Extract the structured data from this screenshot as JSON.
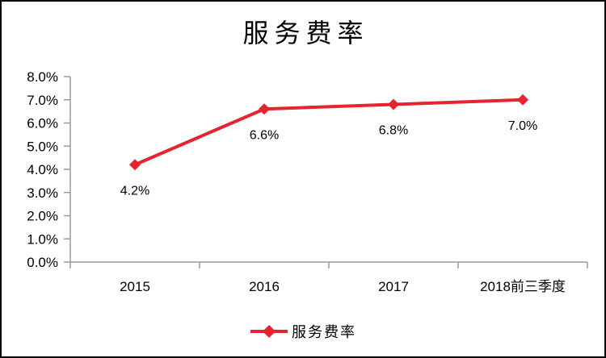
{
  "chart_data": {
    "type": "line",
    "title": "服务费率",
    "categories": [
      "2015",
      "2016",
      "2017",
      "2018前三季度"
    ],
    "series": [
      {
        "name": "服务费率",
        "values": [
          4.2,
          6.6,
          6.8,
          7.0
        ],
        "point_labels": [
          "4.2%",
          "6.6%",
          "6.8%",
          "7.0%"
        ],
        "color": "#E5242F",
        "marker": "diamond"
      }
    ],
    "xlabel": "",
    "ylabel": "",
    "ylim": [
      0,
      8
    ],
    "y_tick_labels": [
      "0.0%",
      "1.0%",
      "2.0%",
      "3.0%",
      "4.0%",
      "5.0%",
      "6.0%",
      "7.0%",
      "8.0%"
    ],
    "grid": false,
    "legend_position": "bottom",
    "axis_color": "#9B9B9B"
  },
  "legend": {
    "label": "服务费率"
  }
}
